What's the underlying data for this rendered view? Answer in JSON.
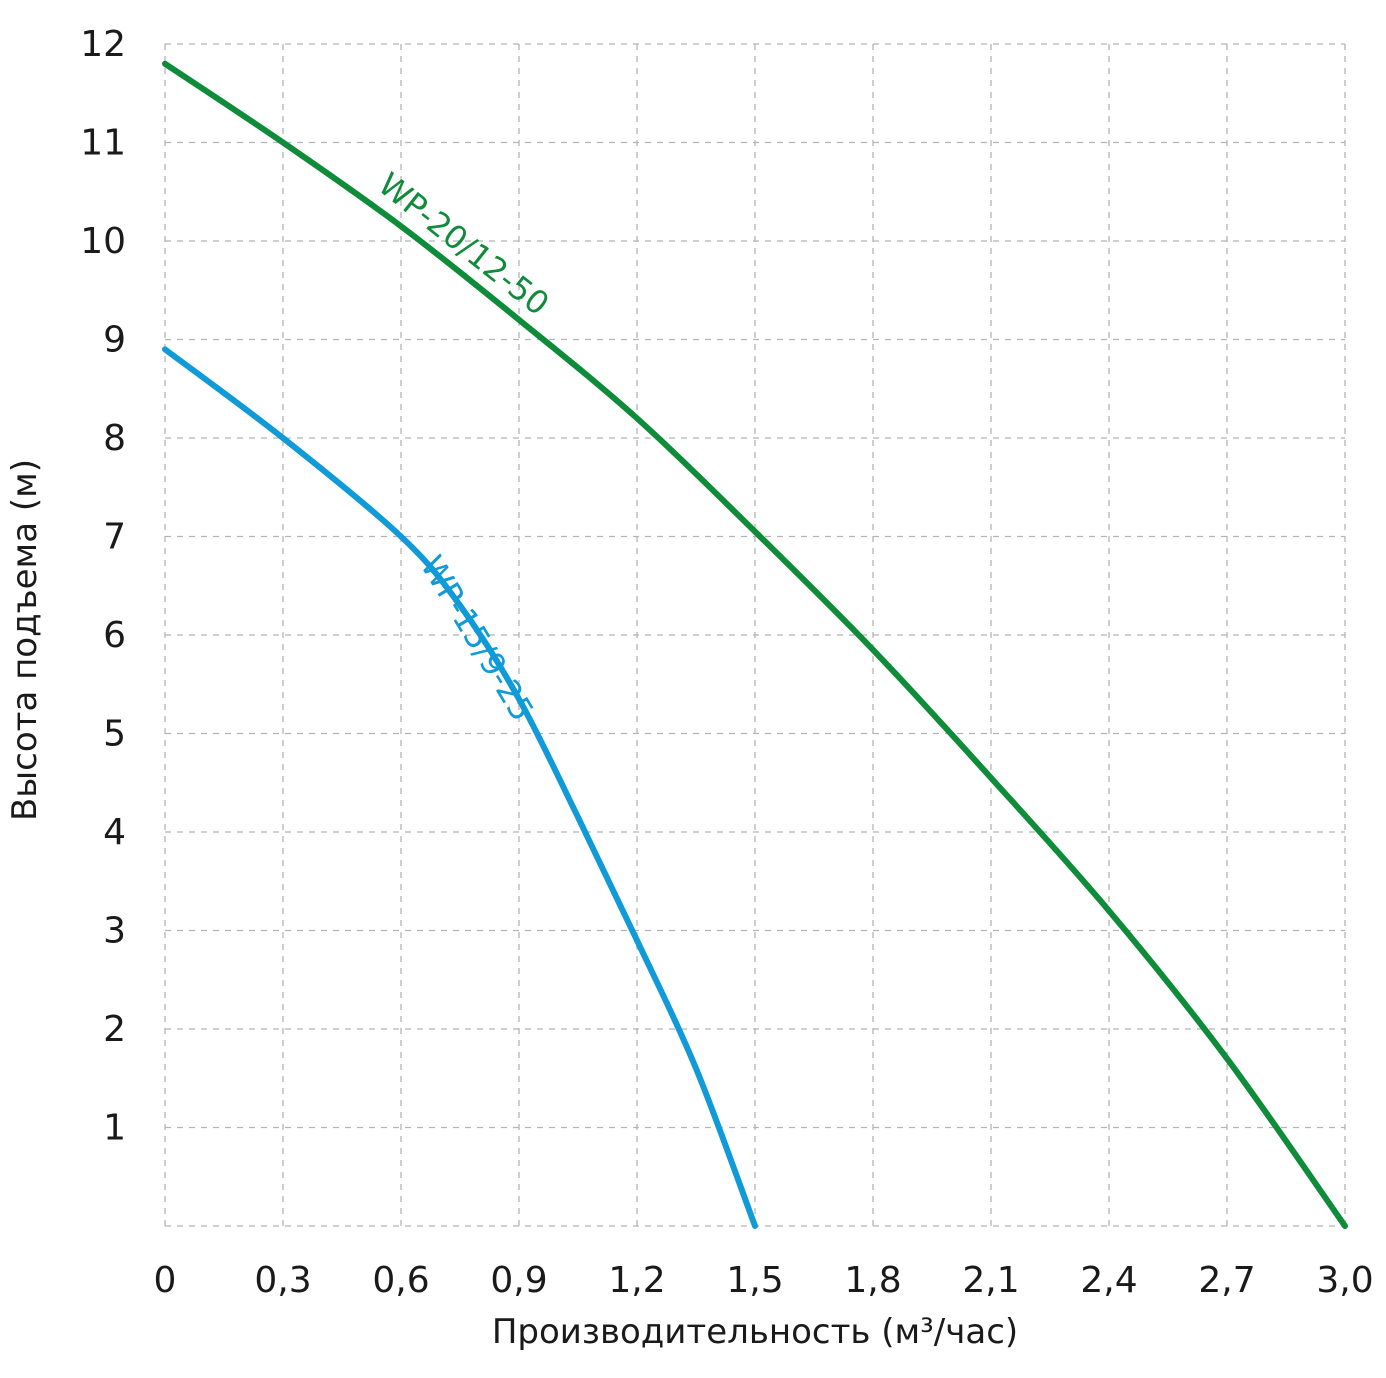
{
  "chart_data": {
    "type": "line",
    "title": "",
    "xlabel": "Производительность (м³/час)",
    "ylabel": "Высота подъема (м)",
    "xlim": [
      0,
      3.0
    ],
    "ylim": [
      0,
      12
    ],
    "grid": true,
    "x_ticks": [
      "0",
      "0,3",
      "0,6",
      "0,9",
      "1,2",
      "1,5",
      "1,8",
      "2,1",
      "2,4",
      "2,7",
      "3,0"
    ],
    "y_ticks": [
      "1",
      "2",
      "3",
      "4",
      "5",
      "6",
      "7",
      "8",
      "9",
      "10",
      "11",
      "12"
    ],
    "series": [
      {
        "name": "WP-20/12-50",
        "color": "#0e8c3a",
        "x": [
          0,
          0.3,
          0.6,
          0.9,
          1.2,
          1.5,
          1.8,
          2.1,
          2.4,
          2.7,
          3.0
        ],
        "y": [
          11.8,
          11.0,
          10.15,
          9.2,
          8.2,
          7.05,
          5.85,
          4.55,
          3.2,
          1.7,
          0
        ]
      },
      {
        "name": "WP-15/9-25",
        "color": "#109ad8",
        "x": [
          0,
          0.3,
          0.6,
          0.75,
          0.9,
          1.05,
          1.2,
          1.35,
          1.5
        ],
        "y": [
          8.9,
          8.0,
          7.0,
          6.3,
          5.35,
          4.15,
          2.9,
          1.6,
          0
        ]
      }
    ]
  }
}
